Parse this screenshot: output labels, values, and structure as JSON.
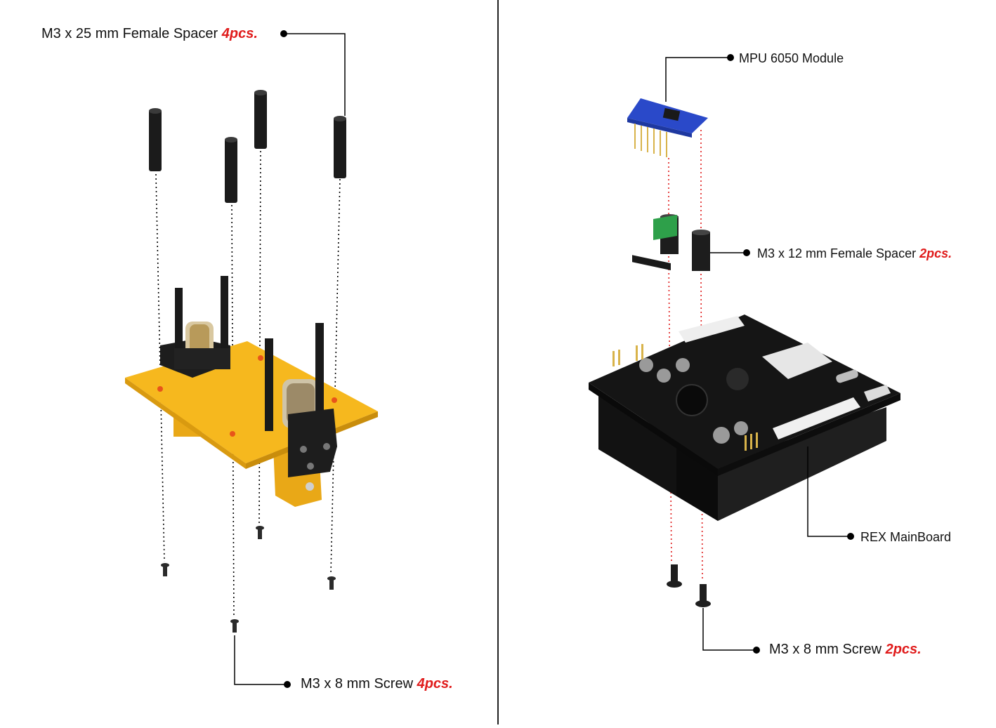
{
  "labels": {
    "left_top": {
      "text": "M3 x 25 mm Female Spacer",
      "qty": "4pcs."
    },
    "left_bottom": {
      "text": "M3 x 8 mm Screw",
      "qty": "4pcs."
    },
    "right_mpu": {
      "text": "MPU 6050 Module"
    },
    "right_spacer": {
      "text": "M3 x 12 mm Female Spacer",
      "qty": "2pcs."
    },
    "right_board": {
      "text": "REX MainBoard"
    },
    "right_screw": {
      "text": "M3 x 8 mm Screw",
      "qty": "2pcs."
    }
  },
  "colors": {
    "acrylic": "#f6b81e",
    "spacer": "#1a1a1a",
    "pcb": "#111111",
    "mpu": "#2a49c9",
    "terminal": "#2ea04a",
    "guide_left": "#000000",
    "guide_right": "#e01b1b",
    "qty": "#e01b1b"
  },
  "icons": {
    "leader_dot": "filled-circle",
    "motor": "dc-motor",
    "board": "pcb-board"
  }
}
